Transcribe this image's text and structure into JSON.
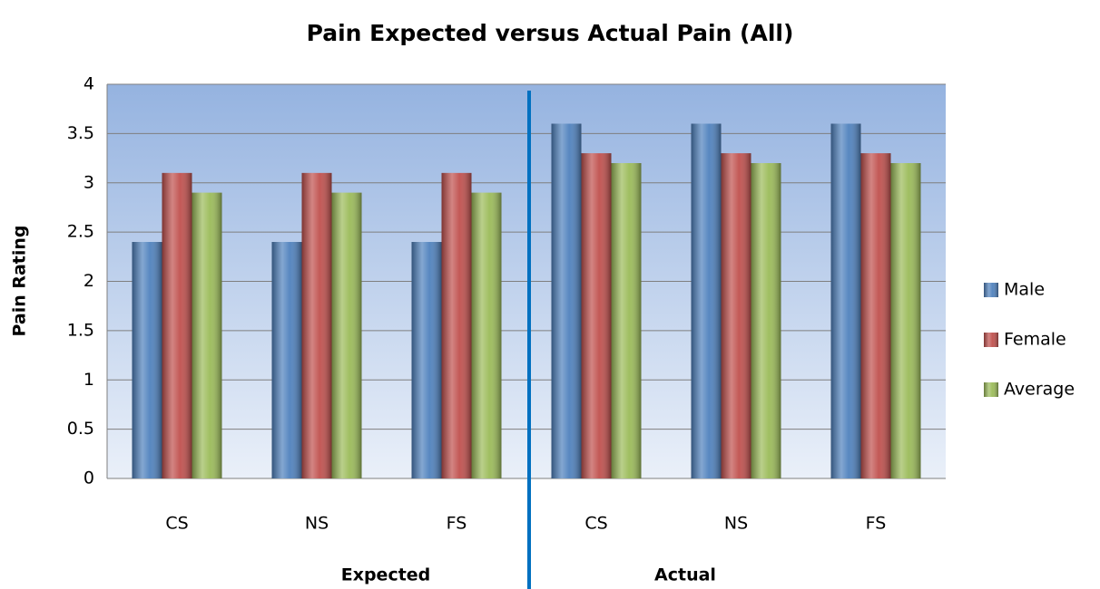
{
  "chart_data": {
    "type": "bar",
    "title": "Pain Expected versus Actual Pain (All)",
    "y_label": "Pain Rating",
    "categories": [
      "CS",
      "NS",
      "FS",
      "CS",
      "NS",
      "FS"
    ],
    "groups": [
      "Expected",
      "Actual"
    ],
    "series": [
      {
        "name": "Male",
        "color": "#4f81bd",
        "values": [
          2.4,
          2.4,
          2.4,
          3.6,
          3.6,
          3.6
        ]
      },
      {
        "name": "Female",
        "color": "#c0504d",
        "values": [
          3.1,
          3.1,
          3.1,
          3.3,
          3.3,
          3.3
        ]
      },
      {
        "name": "Average",
        "color": "#9bbb59",
        "values": [
          2.9,
          2.9,
          2.9,
          3.2,
          3.2,
          3.2
        ]
      }
    ],
    "ylim": [
      0,
      4
    ],
    "yticks": [
      0,
      0.5,
      1,
      1.5,
      2,
      2.5,
      3,
      3.5,
      4
    ],
    "grid": true,
    "legend": "right"
  }
}
